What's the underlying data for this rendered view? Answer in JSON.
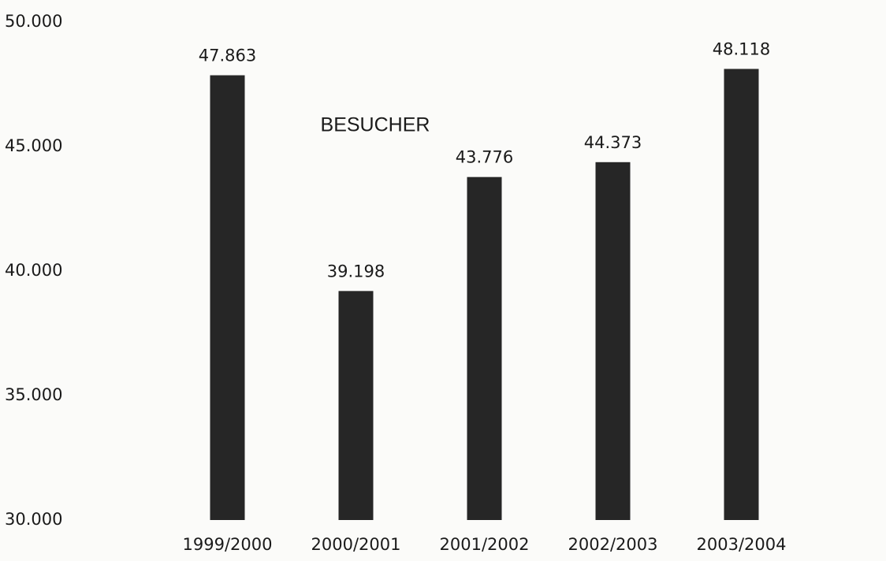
{
  "chart_data": {
    "type": "bar",
    "title": "BESUCHER",
    "categories": [
      "1999/2000",
      "2000/2001",
      "2001/2002",
      "2002/2003",
      "2003/2004"
    ],
    "values": [
      47863,
      39198,
      43776,
      44373,
      48118
    ],
    "value_labels": [
      "47.863",
      "39.198",
      "43.776",
      "44.373",
      "48.118"
    ],
    "color": "#262626",
    "ylim": [
      30000,
      50000
    ],
    "yticks": [
      {
        "value": 30000,
        "label": "30.000"
      },
      {
        "value": 35000,
        "label": "35.000"
      },
      {
        "value": 40000,
        "label": "40.000"
      },
      {
        "value": 45000,
        "label": "45.000"
      },
      {
        "value": 50000,
        "label": "50.000"
      }
    ],
    "grid": false
  }
}
